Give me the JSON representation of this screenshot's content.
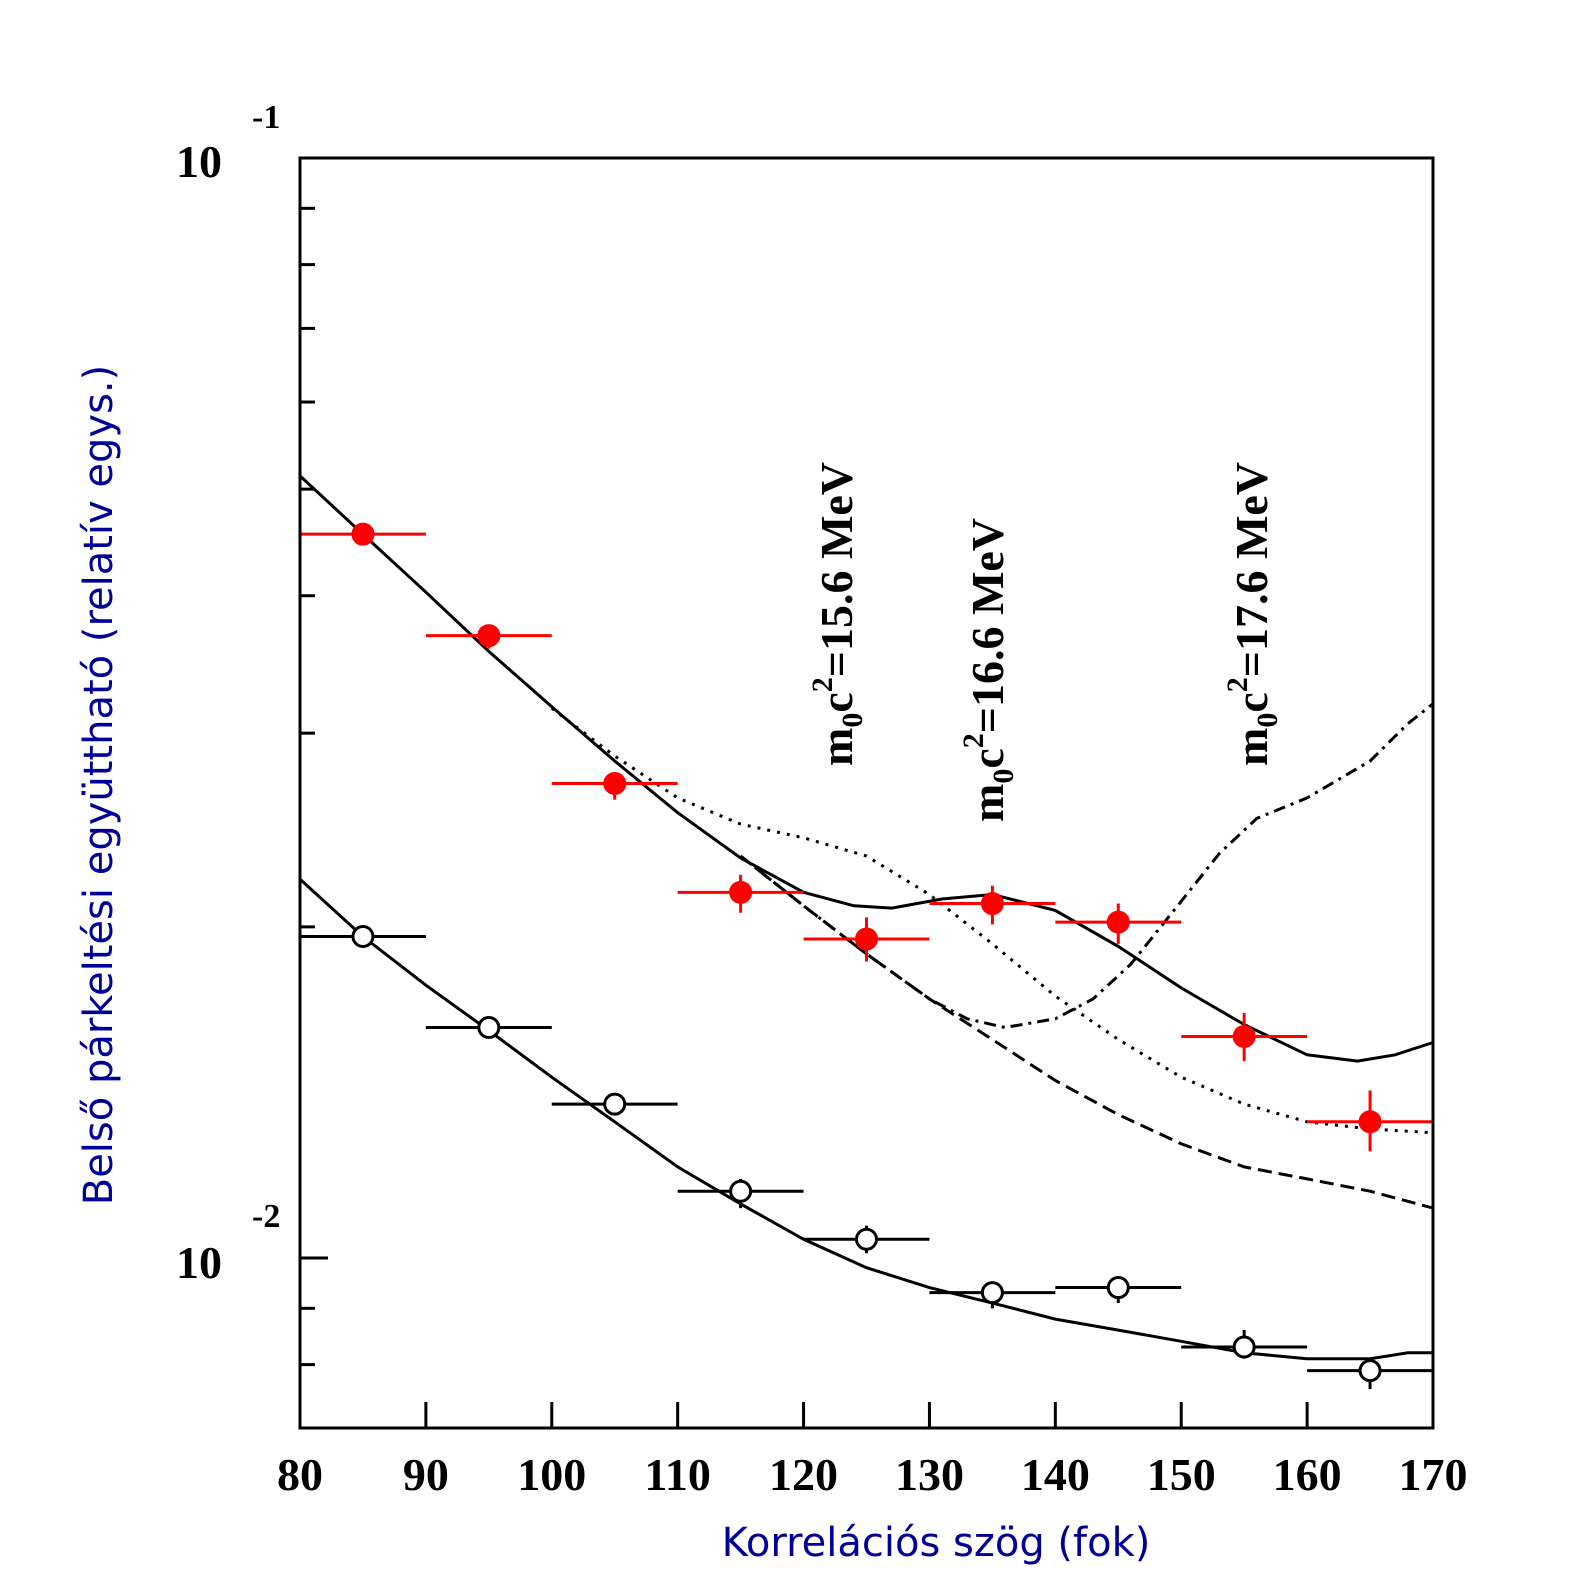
{
  "chart_data": {
    "type": "scatter",
    "xlabel": "Korrelációs szög (fok)",
    "ylabel": "Belső párkeltési együttható (relatív egys.)",
    "xlim": [
      80,
      170
    ],
    "ylim": [
      0.0074,
      0.1
    ],
    "yscale": "log",
    "x_ticks": [
      80,
      90,
      100,
      110,
      120,
      130,
      140,
      150,
      160,
      170
    ],
    "y_ticks": [
      {
        "value": 0.1,
        "base": "10",
        "exp": "-1"
      },
      {
        "value": 0.01,
        "base": "10",
        "exp": "-2"
      }
    ],
    "grid": false,
    "annotations": [
      {
        "prefix": "m",
        "sub": "0",
        "mid": "c",
        "sup": "2",
        "suffix": "=15.6 MeV",
        "x": 123,
        "y": 0.045
      },
      {
        "prefix": "m",
        "sub": "0",
        "mid": "c",
        "sup": "2",
        "suffix": "=16.6 MeV",
        "x": 135,
        "y": 0.041
      },
      {
        "prefix": "m",
        "sub": "0",
        "mid": "c",
        "sup": "2",
        "suffix": "=17.6 MeV",
        "x": 156,
        "y": 0.045
      }
    ],
    "series": [
      {
        "kind": "points",
        "marker": "filled-circle",
        "color": "#ff0000",
        "x": [
          85,
          95,
          105,
          115,
          125,
          135,
          145,
          155,
          165
        ],
        "xerr": 5,
        "y": [
          0.0455,
          0.0368,
          0.027,
          0.0215,
          0.0195,
          0.021,
          0.0202,
          0.0159,
          0.0133
        ],
        "yerr_low": [
          0.0465,
          0.0374,
          0.0276,
          0.0223,
          0.0204,
          0.0218,
          0.021,
          0.0167,
          0.0142
        ],
        "yerr_high": [
          0.0445,
          0.0358,
          0.0261,
          0.0206,
          0.0186,
          0.0201,
          0.0193,
          0.0151,
          0.0125
        ]
      },
      {
        "kind": "points",
        "marker": "open-circle",
        "color": "#000000",
        "x": [
          85,
          95,
          105,
          115,
          125,
          135,
          145,
          155,
          165
        ],
        "xerr": 5,
        "y": [
          0.0196,
          0.0162,
          0.0138,
          0.0115,
          0.0104,
          0.0093,
          0.0094,
          0.0083,
          0.0079
        ],
        "yerr_low": [
          0.0198,
          0.0164,
          0.0141,
          0.0118,
          0.0107,
          0.0095,
          0.0096,
          0.0086,
          0.0081
        ],
        "yerr_high": [
          0.0194,
          0.016,
          0.0135,
          0.0111,
          0.0101,
          0.009,
          0.0091,
          0.0081,
          0.0076
        ]
      },
      {
        "kind": "line",
        "style": "solid",
        "color": "#000000",
        "x": [
          80,
          85,
          90,
          95,
          100,
          105,
          110,
          115,
          120,
          124,
          127,
          131,
          135,
          140,
          145,
          150,
          155,
          160,
          164,
          167,
          170
        ],
        "y": [
          0.0514,
          0.0455,
          0.0403,
          0.0356,
          0.0317,
          0.0283,
          0.0254,
          0.0231,
          0.0215,
          0.0209,
          0.0208,
          0.0212,
          0.0214,
          0.0207,
          0.0192,
          0.0176,
          0.0163,
          0.0153,
          0.0151,
          0.0153,
          0.0157
        ]
      },
      {
        "kind": "line",
        "style": "solid",
        "color": "#000000",
        "x": [
          80,
          85,
          90,
          95,
          100,
          105,
          110,
          115,
          120,
          125,
          130,
          135,
          140,
          145,
          150,
          155,
          160,
          165,
          168,
          170
        ],
        "y": [
          0.0221,
          0.0196,
          0.0177,
          0.0161,
          0.0146,
          0.0133,
          0.0121,
          0.0112,
          0.0104,
          0.0098,
          0.0094,
          0.0091,
          0.0088,
          0.0086,
          0.0084,
          0.0082,
          0.0081,
          0.0081,
          0.0082,
          0.0082
        ]
      },
      {
        "kind": "line",
        "style": "dotted",
        "color": "#000000",
        "x": [
          100,
          105,
          110,
          115,
          120,
          125,
          130,
          135,
          140,
          145,
          150,
          155,
          160,
          165,
          170
        ],
        "y": [
          0.0316,
          0.0286,
          0.0262,
          0.0248,
          0.0241,
          0.0232,
          0.0214,
          0.0193,
          0.0173,
          0.0158,
          0.0146,
          0.0138,
          0.0133,
          0.0131,
          0.013
        ]
      },
      {
        "kind": "line",
        "style": "dashed",
        "color": "#000000",
        "x": [
          115,
          120,
          125,
          130,
          135,
          140,
          145,
          150,
          155,
          160,
          165,
          170
        ],
        "y": [
          0.0232,
          0.0209,
          0.0189,
          0.0172,
          0.0158,
          0.0145,
          0.0135,
          0.0127,
          0.0121,
          0.0118,
          0.0115,
          0.0111
        ]
      },
      {
        "kind": "line",
        "style": "dash-dot",
        "color": "#000000",
        "x": [
          115,
          120,
          125,
          130,
          133,
          136,
          140,
          143,
          146,
          150,
          153,
          156,
          160,
          165,
          168,
          170
        ],
        "y": [
          0.0232,
          0.0209,
          0.0189,
          0.0172,
          0.0165,
          0.0162,
          0.0165,
          0.0172,
          0.0185,
          0.0211,
          0.0233,
          0.0251,
          0.0262,
          0.0283,
          0.0306,
          0.0319
        ]
      }
    ]
  }
}
